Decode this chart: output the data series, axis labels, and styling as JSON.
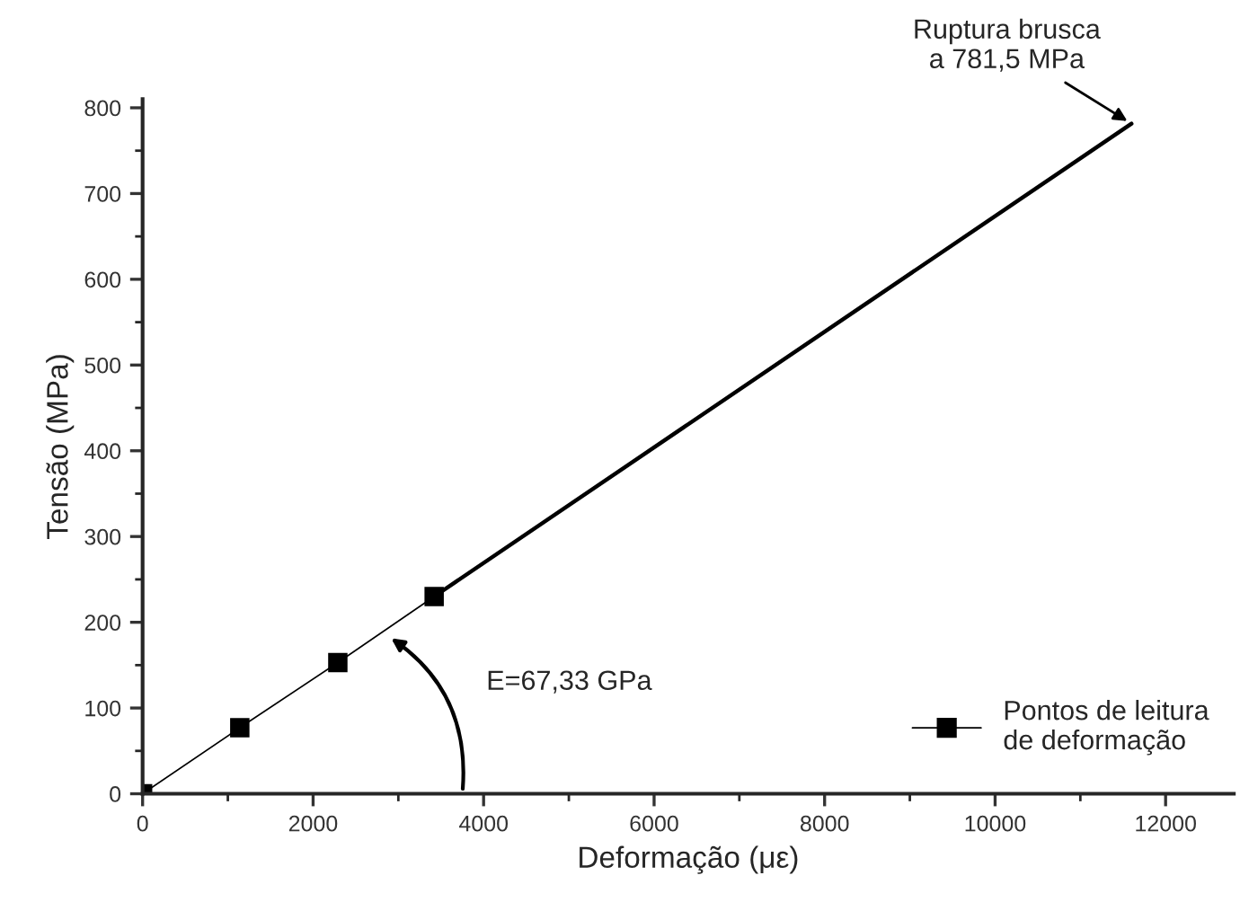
{
  "chart_data": {
    "type": "line",
    "xlabel": "Deformação (με)",
    "ylabel": "Tensão (MPa)",
    "series": [
      {
        "name": "Pontos de leitura\nde deformação",
        "color": "#000000",
        "marker": "square",
        "x": [
          0,
          1140,
          2290,
          3420
        ],
        "values": [
          0,
          77,
          153,
          230
        ]
      },
      {
        "color": "#000000",
        "marker": "none",
        "x": [
          3420,
          11600
        ],
        "values": [
          230,
          781.5
        ]
      }
    ],
    "xlim": [
      0,
      12800
    ],
    "xticks": [
      0,
      2000,
      4000,
      6000,
      8000,
      10000,
      12000
    ],
    "ylim": [
      0,
      810
    ],
    "yticks": [
      0,
      100,
      200,
      300,
      400,
      500,
      600,
      700,
      800
    ],
    "annotations": [
      {
        "text": "Ruptura brusca\na 781,5 MPa",
        "x": 11600,
        "y": 781.5
      },
      "E=67,33 GPa"
    ],
    "legend": "bottom right",
    "grid": false,
    "line_style": "solid"
  }
}
